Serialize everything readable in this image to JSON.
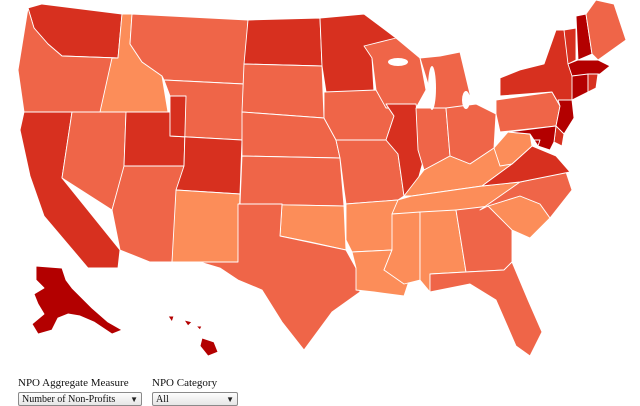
{
  "map": {
    "colors": {
      "lightest": "#fc8d59",
      "light": "#ef6548",
      "medium": "#d7301f",
      "dark": "#b30000",
      "border": "#ffffff"
    },
    "states": [
      {
        "name": "WA",
        "level": "medium"
      },
      {
        "name": "OR",
        "level": "light"
      },
      {
        "name": "CA",
        "level": "medium"
      },
      {
        "name": "ID",
        "level": "lightest"
      },
      {
        "name": "NV",
        "level": "light"
      },
      {
        "name": "UT",
        "level": "medium"
      },
      {
        "name": "AZ",
        "level": "light"
      },
      {
        "name": "MT",
        "level": "light"
      },
      {
        "name": "WY",
        "level": "light"
      },
      {
        "name": "CO",
        "level": "medium"
      },
      {
        "name": "NM",
        "level": "lightest"
      },
      {
        "name": "ND",
        "level": "medium"
      },
      {
        "name": "SD",
        "level": "light"
      },
      {
        "name": "NE",
        "level": "light"
      },
      {
        "name": "KS",
        "level": "light"
      },
      {
        "name": "OK",
        "level": "lightest"
      },
      {
        "name": "TX",
        "level": "light"
      },
      {
        "name": "MN",
        "level": "medium"
      },
      {
        "name": "IA",
        "level": "light"
      },
      {
        "name": "MO",
        "level": "light"
      },
      {
        "name": "AR",
        "level": "lightest"
      },
      {
        "name": "LA",
        "level": "lightest"
      },
      {
        "name": "WI",
        "level": "light"
      },
      {
        "name": "IL",
        "level": "medium"
      },
      {
        "name": "MI",
        "level": "light"
      },
      {
        "name": "IN",
        "level": "light"
      },
      {
        "name": "OH",
        "level": "light"
      },
      {
        "name": "KY",
        "level": "lightest"
      },
      {
        "name": "TN",
        "level": "lightest"
      },
      {
        "name": "MS",
        "level": "lightest"
      },
      {
        "name": "AL",
        "level": "lightest"
      },
      {
        "name": "GA",
        "level": "light"
      },
      {
        "name": "FL",
        "level": "light"
      },
      {
        "name": "SC",
        "level": "lightest"
      },
      {
        "name": "NC",
        "level": "light"
      },
      {
        "name": "VA",
        "level": "medium"
      },
      {
        "name": "WV",
        "level": "lightest"
      },
      {
        "name": "PA",
        "level": "light"
      },
      {
        "name": "NY",
        "level": "medium"
      },
      {
        "name": "VT",
        "level": "medium"
      },
      {
        "name": "NH",
        "level": "dark"
      },
      {
        "name": "ME",
        "level": "light"
      },
      {
        "name": "MA",
        "level": "dark"
      },
      {
        "name": "CT",
        "level": "dark"
      },
      {
        "name": "RI",
        "level": "medium"
      },
      {
        "name": "NJ",
        "level": "dark"
      },
      {
        "name": "DE",
        "level": "medium"
      },
      {
        "name": "MD",
        "level": "dark"
      },
      {
        "name": "DC",
        "level": "dark"
      },
      {
        "name": "AK",
        "level": "dark"
      },
      {
        "name": "HI",
        "level": "dark"
      }
    ]
  },
  "controls": {
    "measure": {
      "label": "NPO Aggregate Measure",
      "value": "Number of Non-Profits"
    },
    "category": {
      "label": "NPO Category",
      "value": "All"
    },
    "arrow_icon": "dropdown-arrow-icon"
  }
}
